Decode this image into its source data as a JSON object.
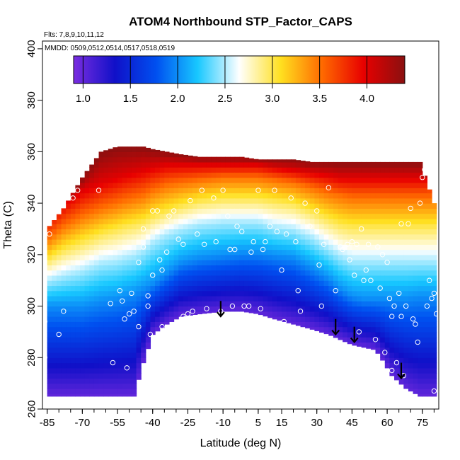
{
  "chart_data": {
    "type": "heatmap",
    "title": "ATOM4 Northbound STP_Factor_CAPS",
    "subtitle_flights": "Flts: 7,8,9,10,11,12",
    "subtitle_dates": "MMDD: 0509,0512,0514,0517,0518,0519",
    "xlabel": "Latitude (deg N)",
    "ylabel": "Theta (C)",
    "xlim": [
      -87,
      82
    ],
    "ylim": [
      260,
      403
    ],
    "x_ticks": [
      -85,
      -70,
      -55,
      -40,
      -25,
      -10,
      5,
      15,
      30,
      45,
      60,
      75
    ],
    "x_minor_step": 5,
    "y_ticks": [
      260,
      280,
      300,
      320,
      340,
      360,
      380,
      400
    ],
    "colorbar": {
      "range": [
        0.9,
        4.4
      ],
      "ticks": [
        1.0,
        1.5,
        2.0,
        2.5,
        3.0,
        3.5,
        4.0
      ],
      "tick_labels": [
        "1.0",
        "1.5",
        "2.0",
        "2.5",
        "3.0",
        "3.5",
        "4.0"
      ],
      "colors": [
        "#7a2de0",
        "#1010c8",
        "#0050f0",
        "#18c8ff",
        "#ffffff",
        "#ffe020",
        "#ff6a00",
        "#e80000",
        "#8a1010"
      ]
    },
    "field_description_levels": {
      "lat": [
        -85,
        -78,
        -70,
        -62,
        -55,
        -52,
        -48,
        -44,
        -40,
        -34,
        -28,
        -20,
        -10,
        -2,
        5,
        12,
        20,
        28,
        35,
        40,
        45,
        50,
        55,
        58,
        62,
        68,
        74,
        80
      ],
      "upper_boundary": [
        330,
        338,
        350,
        360,
        362,
        362,
        362,
        362,
        361,
        360,
        359,
        358,
        358,
        358,
        357,
        357,
        357,
        356,
        356,
        356,
        356,
        356,
        356,
        356,
        356,
        356,
        356,
        340
      ],
      "lower_boundary": [
        265,
        265,
        265,
        265,
        265,
        265,
        265,
        278,
        289,
        293,
        296,
        297,
        298,
        298,
        297,
        295,
        293,
        291,
        289,
        287,
        285,
        284,
        283,
        279,
        273,
        268,
        265,
        265
      ],
      "level_2_0": [
        300,
        300,
        300,
        302,
        303,
        304,
        305,
        307,
        309,
        313,
        317,
        319,
        320,
        321,
        321,
        320,
        319,
        315,
        311,
        307,
        304,
        303,
        303,
        303,
        303,
        303,
        304,
        304
      ],
      "level_2_5": [
        310,
        312,
        314,
        317,
        318,
        319,
        320,
        322,
        325,
        328,
        330,
        332,
        333,
        333,
        333,
        331,
        330,
        327,
        323,
        320,
        318,
        318,
        318,
        318,
        318,
        318,
        318,
        318
      ],
      "level_3_0": [
        318,
        322,
        325,
        328,
        330,
        331,
        332,
        333,
        335,
        337,
        339,
        341,
        342,
        342,
        342,
        341,
        340,
        337,
        334,
        332,
        331,
        331,
        331,
        331,
        331,
        331,
        331,
        331
      ],
      "level_3_5": [
        326,
        331,
        335,
        338,
        340,
        341,
        342,
        343,
        345,
        347,
        348,
        349,
        350,
        350,
        350,
        349,
        348,
        346,
        344,
        343,
        342,
        342,
        342,
        342,
        342,
        342,
        342,
        342
      ],
      "level_4_0": [
        334,
        340,
        345,
        348,
        350,
        351,
        352,
        353,
        354,
        355,
        355,
        355,
        355,
        355,
        355,
        354,
        353,
        352,
        351,
        350,
        350,
        350,
        350,
        350,
        350,
        350,
        350,
        350
      ]
    },
    "observation_points": [
      [
        -86,
        294
      ],
      [
        -86,
        280
      ],
      [
        -84,
        328
      ],
      [
        -80,
        289
      ],
      [
        -78,
        298
      ],
      [
        -74,
        342
      ],
      [
        -72,
        345
      ],
      [
        -68,
        358
      ],
      [
        -65,
        361
      ],
      [
        -63,
        345
      ],
      [
        -58,
        301
      ],
      [
        -57,
        278
      ],
      [
        -54,
        306
      ],
      [
        -53,
        302
      ],
      [
        -52,
        295
      ],
      [
        -51,
        276
      ],
      [
        -50,
        297
      ],
      [
        -49,
        305
      ],
      [
        -48,
        298
      ],
      [
        -46,
        292
      ],
      [
        -46,
        317
      ],
      [
        -44,
        323
      ],
      [
        -44,
        330
      ],
      [
        -42,
        304
      ],
      [
        -42,
        300
      ],
      [
        -41,
        289
      ],
      [
        -40,
        312
      ],
      [
        -40,
        337
      ],
      [
        -38,
        337
      ],
      [
        -37,
        318
      ],
      [
        -36,
        314
      ],
      [
        -36,
        292
      ],
      [
        -34,
        321
      ],
      [
        -33,
        335
      ],
      [
        -31,
        337
      ],
      [
        -29,
        326
      ],
      [
        -27,
        296
      ],
      [
        -27,
        324
      ],
      [
        -25,
        297
      ],
      [
        -24,
        341
      ],
      [
        -23,
        298
      ],
      [
        -21,
        328
      ],
      [
        -19,
        345
      ],
      [
        -18,
        324
      ],
      [
        -17,
        299
      ],
      [
        -14,
        342
      ],
      [
        -13,
        325
      ],
      [
        -11,
        298
      ],
      [
        -10,
        345
      ],
      [
        -8,
        335
      ],
      [
        -7,
        322
      ],
      [
        -6,
        300
      ],
      [
        -5,
        322
      ],
      [
        -4,
        331
      ],
      [
        -2,
        329
      ],
      [
        -1,
        300
      ],
      [
        1,
        300
      ],
      [
        2,
        321
      ],
      [
        3,
        325
      ],
      [
        5,
        345
      ],
      [
        6,
        299
      ],
      [
        7,
        322
      ],
      [
        8,
        325
      ],
      [
        10,
        331
      ],
      [
        12,
        345
      ],
      [
        13,
        329
      ],
      [
        15,
        314
      ],
      [
        16,
        294
      ],
      [
        17,
        328
      ],
      [
        19,
        342
      ],
      [
        21,
        325
      ],
      [
        22,
        306
      ],
      [
        23,
        298
      ],
      [
        25,
        340
      ],
      [
        27,
        331
      ],
      [
        30,
        337
      ],
      [
        31,
        316
      ],
      [
        32,
        300
      ],
      [
        33,
        324
      ],
      [
        35,
        346
      ],
      [
        38,
        306
      ],
      [
        40,
        323
      ],
      [
        41,
        322
      ],
      [
        43,
        324
      ],
      [
        44,
        318
      ],
      [
        45,
        325
      ],
      [
        46,
        312
      ],
      [
        47,
        324
      ],
      [
        48,
        290
      ],
      [
        49,
        330
      ],
      [
        50,
        310
      ],
      [
        51,
        314
      ],
      [
        52,
        324
      ],
      [
        53,
        310
      ],
      [
        55,
        287
      ],
      [
        56,
        323
      ],
      [
        57,
        307
      ],
      [
        58,
        320
      ],
      [
        59,
        282
      ],
      [
        60,
        317
      ],
      [
        61,
        303
      ],
      [
        62,
        296
      ],
      [
        62,
        275
      ],
      [
        63,
        300
      ],
      [
        64,
        278
      ],
      [
        65,
        305
      ],
      [
        66,
        296
      ],
      [
        66,
        332
      ],
      [
        67,
        273
      ],
      [
        68,
        300
      ],
      [
        69,
        332
      ],
      [
        70,
        338
      ],
      [
        71,
        295
      ],
      [
        72,
        293
      ],
      [
        73,
        286
      ],
      [
        74,
        340
      ],
      [
        75,
        350
      ],
      [
        76,
        353
      ],
      [
        77,
        300
      ],
      [
        78,
        310
      ],
      [
        79,
        303
      ],
      [
        80,
        267
      ],
      [
        80,
        305
      ],
      [
        81,
        297
      ]
    ],
    "arrows_down": [
      [
        -11,
        302
      ],
      [
        38,
        295
      ],
      [
        46,
        292
      ],
      [
        66,
        278
      ]
    ]
  }
}
